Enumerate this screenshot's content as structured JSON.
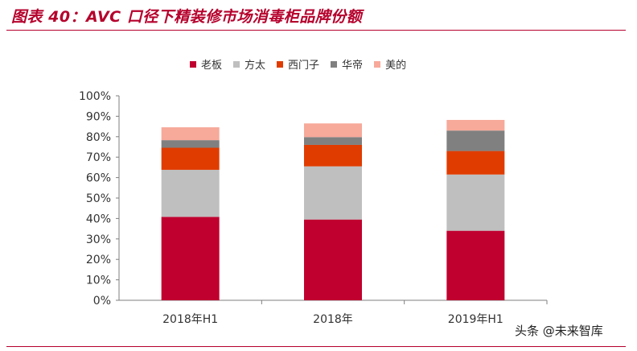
{
  "title": "图表 40：AVC 口径下精装修市场消毒柜品牌份额",
  "watermark": "头条 @未来智库",
  "chart_data": {
    "type": "bar",
    "stacked": true,
    "categories": [
      "2018年H1",
      "2018年",
      "2019年H1"
    ],
    "ylim": [
      0,
      100
    ],
    "yticks": [
      "0%",
      "10%",
      "20%",
      "30%",
      "40%",
      "50%",
      "60%",
      "70%",
      "80%",
      "90%",
      "100%"
    ],
    "legend_position": "top",
    "grid": false,
    "series": [
      {
        "name": "老板",
        "color": "#c0002f",
        "values": [
          40.8,
          39.5,
          34.0
        ]
      },
      {
        "name": "方太",
        "color": "#bfbfbf",
        "values": [
          23.0,
          26.0,
          27.5
        ]
      },
      {
        "name": "西门子",
        "color": "#e03c00",
        "values": [
          10.8,
          10.5,
          11.5
        ]
      },
      {
        "name": "华帝",
        "color": "#808080",
        "values": [
          3.7,
          3.8,
          10.0
        ]
      },
      {
        "name": "美的",
        "color": "#f7a99a",
        "values": [
          6.3,
          6.7,
          5.2
        ]
      }
    ]
  }
}
